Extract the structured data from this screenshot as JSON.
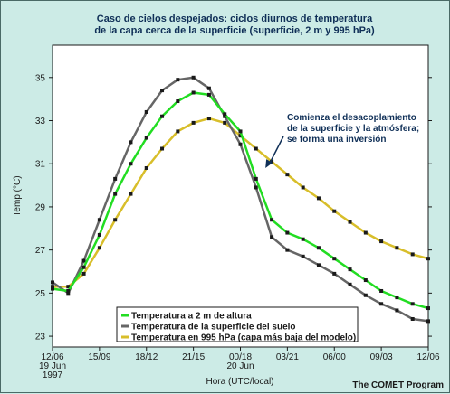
{
  "chart_data": {
    "type": "line",
    "title": [
      "Caso de cielos despejados: ciclos diurnos de temperatura",
      "de la capa cerca de la superficie (superficie, 2 m y 995 hPa)"
    ],
    "xlabel": "Hora (UTC/local)",
    "ylabel": "Temp (°C)",
    "xlim": [
      0,
      24
    ],
    "ylim": [
      22.5,
      36.5
    ],
    "x_ticks": [
      {
        "x": 0,
        "lines": [
          "12/06",
          "19 Jun",
          "1997"
        ]
      },
      {
        "x": 3,
        "lines": [
          "15/09"
        ]
      },
      {
        "x": 6,
        "lines": [
          "18/12"
        ]
      },
      {
        "x": 9,
        "lines": [
          "21/15"
        ]
      },
      {
        "x": 12,
        "lines": [
          "00/18",
          "20 Jun"
        ]
      },
      {
        "x": 15,
        "lines": [
          "03/21"
        ]
      },
      {
        "x": 18,
        "lines": [
          "06/00"
        ]
      },
      {
        "x": 21,
        "lines": [
          "09/03"
        ]
      },
      {
        "x": 24,
        "lines": [
          "12/06"
        ]
      }
    ],
    "y_ticks": [
      23,
      25,
      27,
      29,
      31,
      33,
      35
    ],
    "grid": false,
    "legend_position": "bottom-left",
    "series": [
      {
        "name": "Temperatura a 2 m de altura",
        "color": "#22dd22",
        "x": [
          0,
          1,
          2,
          3,
          4,
          5,
          6,
          7,
          8,
          9,
          10,
          11,
          12,
          13,
          14,
          15,
          16,
          17,
          18,
          19,
          20,
          21,
          22,
          23,
          24
        ],
        "y": [
          25.2,
          25.1,
          26.2,
          27.7,
          29.6,
          31.0,
          32.2,
          33.2,
          33.9,
          34.3,
          34.2,
          33.3,
          32.5,
          30.3,
          28.4,
          27.8,
          27.5,
          27.1,
          26.6,
          26.1,
          25.6,
          25.1,
          24.8,
          24.5,
          24.3
        ]
      },
      {
        "name": "Temperatura de la superficie del suelo",
        "color": "#666666",
        "x": [
          0,
          1,
          2,
          3,
          4,
          5,
          6,
          7,
          8,
          9,
          10,
          11,
          12,
          13,
          14,
          15,
          16,
          17,
          18,
          19,
          20,
          21,
          22,
          23,
          24
        ],
        "y": [
          25.5,
          25.0,
          26.5,
          28.4,
          30.3,
          32.0,
          33.4,
          34.4,
          34.9,
          35.0,
          34.5,
          33.2,
          31.9,
          29.9,
          27.6,
          27.0,
          26.7,
          26.3,
          25.9,
          25.4,
          24.9,
          24.5,
          24.2,
          23.8,
          23.7
        ]
      },
      {
        "name": "Temperatura en 995 hPa (capa más baja del modelo)",
        "color": "#d8be2a",
        "x": [
          0,
          1,
          2,
          3,
          4,
          5,
          6,
          7,
          8,
          9,
          10,
          11,
          12,
          13,
          14,
          15,
          16,
          17,
          18,
          19,
          20,
          21,
          22,
          23,
          24
        ],
        "y": [
          25.3,
          25.3,
          25.9,
          27.1,
          28.4,
          29.6,
          30.8,
          31.7,
          32.5,
          32.9,
          33.1,
          32.9,
          32.3,
          31.7,
          31.1,
          30.5,
          29.9,
          29.4,
          28.8,
          28.3,
          27.8,
          27.4,
          27.1,
          26.8,
          26.6
        ]
      }
    ],
    "annotations": [
      {
        "lines": [
          "Comienza el desacoplamiento",
          "de la superficie y la atmósfera;",
          "se forma una inversión"
        ],
        "arrow_to": {
          "x": 13.6,
          "y": 30.8
        }
      }
    ]
  },
  "credit": "The COMET Program"
}
